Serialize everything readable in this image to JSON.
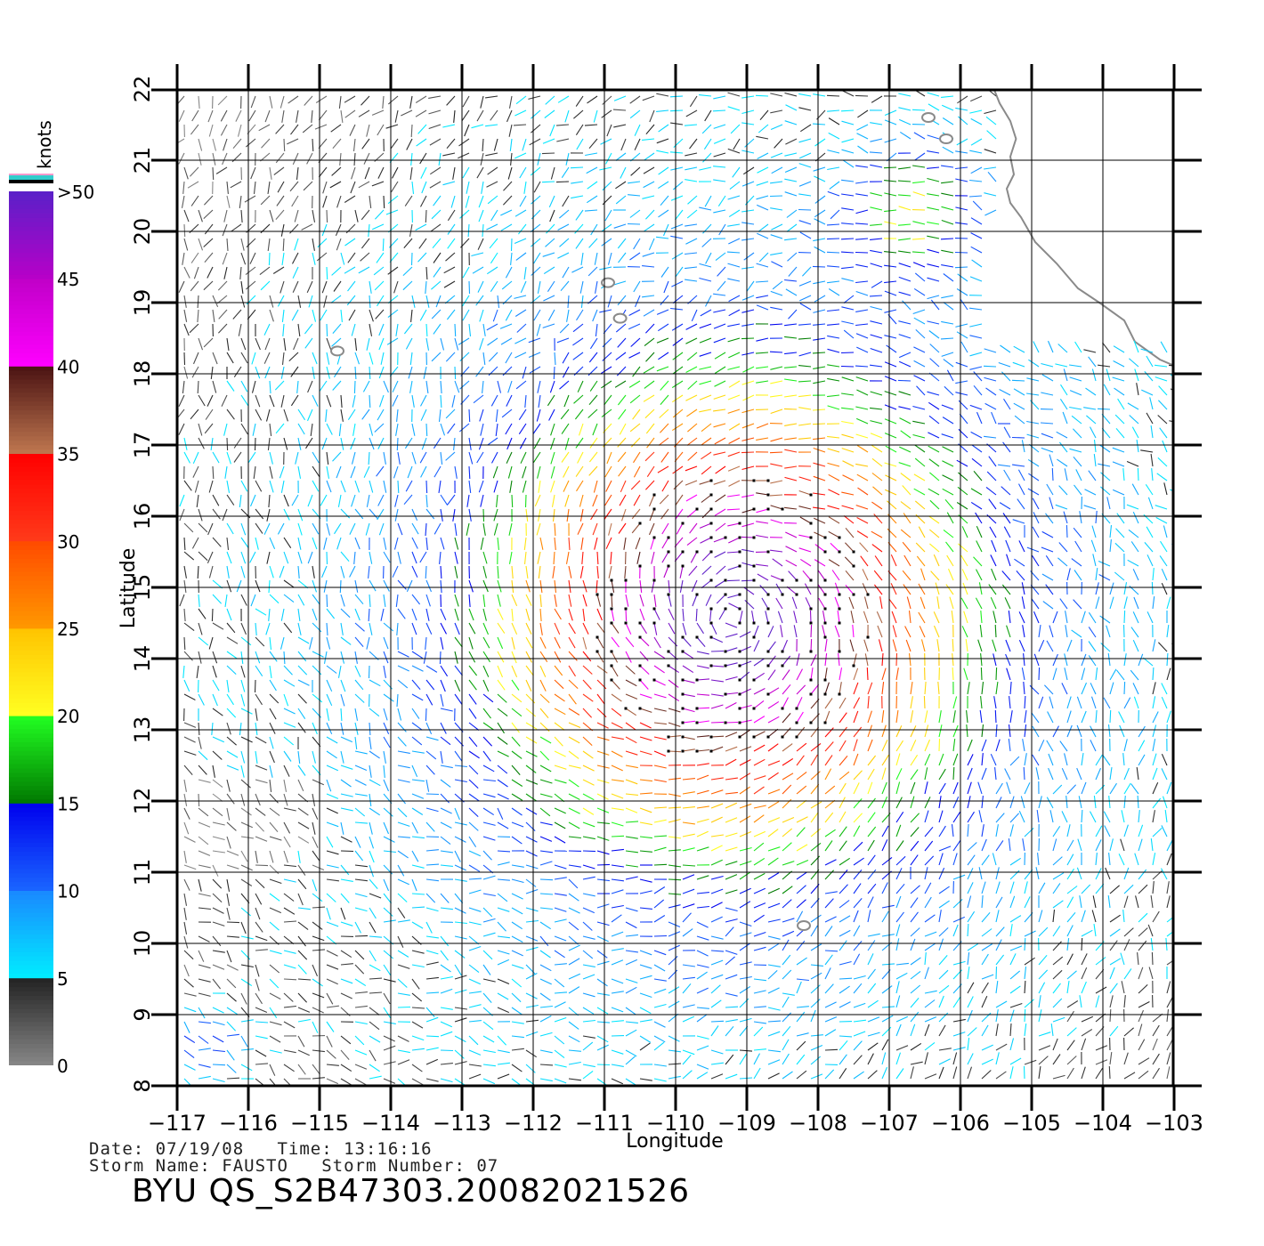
{
  "chart_data": {
    "type": "wind-vector-map",
    "xlabel": "Longitude",
    "ylabel": "Latitude",
    "xlim": [
      -117,
      -102.5
    ],
    "ylim": [
      8,
      22
    ],
    "x_ticks": [
      "−117",
      "−116",
      "−115",
      "−114",
      "−113",
      "−112",
      "−111",
      "−110",
      "−109",
      "−108",
      "−107",
      "−106",
      "−105",
      "−104",
      "−103"
    ],
    "x_tick_values": [
      -117,
      -116,
      -115,
      -114,
      -113,
      -112,
      -111,
      -110,
      -109,
      -108,
      -107,
      -106,
      -105,
      -104,
      -103
    ],
    "y_ticks": [
      "8",
      "9",
      "10",
      "11",
      "12",
      "13",
      "14",
      "15",
      "16",
      "17",
      "18",
      "19",
      "20",
      "21",
      "22"
    ],
    "y_tick_values": [
      8,
      9,
      10,
      11,
      12,
      13,
      14,
      15,
      16,
      17,
      18,
      19,
      20,
      21,
      22
    ],
    "grid": true,
    "storm_center": {
      "lon": -109.2,
      "lat": 14.6
    },
    "speed_scale": {
      "unit": "knots",
      "labels": [
        ">50",
        "45",
        "40",
        "35",
        "30",
        "25",
        "20",
        "15",
        "10",
        "5",
        "0"
      ],
      "label_values": [
        50,
        45,
        40,
        35,
        30,
        25,
        20,
        15,
        10,
        5,
        0
      ],
      "bands": [
        {
          "min": 0,
          "max": 5,
          "color_low": "#888888",
          "color_high": "#222222"
        },
        {
          "min": 5,
          "max": 10,
          "color_low": "#00eeff",
          "color_high": "#1a88ff"
        },
        {
          "min": 10,
          "max": 15,
          "color_low": "#1a66ff",
          "color_high": "#0000ee"
        },
        {
          "min": 15,
          "max": 20,
          "color_low": "#007700",
          "color_high": "#22ff22"
        },
        {
          "min": 20,
          "max": 25,
          "color_low": "#ffff22",
          "color_high": "#ffc400"
        },
        {
          "min": 25,
          "max": 30,
          "color_low": "#ff9900",
          "color_high": "#ff4a00"
        },
        {
          "min": 30,
          "max": 35,
          "color_low": "#ff3a1a",
          "color_high": "#ff0000"
        },
        {
          "min": 35,
          "max": 40,
          "color_low": "#c07850",
          "color_high": "#4a1212"
        },
        {
          "min": 40,
          "max": 45,
          "color_low": "#ff00ff",
          "color_high": "#c000c8"
        },
        {
          "min": 45,
          "max": 50,
          "color_low": "#b800c8",
          "color_high": "#5a20c8"
        }
      ],
      "over_colors": [
        "#ff99cc",
        "#000000",
        "#33cccc"
      ]
    },
    "islands": [
      {
        "lon": -114.75,
        "lat": 18.32
      },
      {
        "lon": -110.78,
        "lat": 18.78
      },
      {
        "lon": -110.95,
        "lat": 19.28
      },
      {
        "lon": -108.2,
        "lat": 10.25
      },
      {
        "lon": -106.45,
        "lat": 21.6
      },
      {
        "lon": -106.2,
        "lat": 21.3
      }
    ]
  },
  "footer": {
    "date_line": "Date: 07/19/08   Time: 13:16:16",
    "storm_line": "Storm Name: FAUSTO   Storm Number: 07",
    "product_id": "BYU QS_S2B47303.20082021526"
  }
}
